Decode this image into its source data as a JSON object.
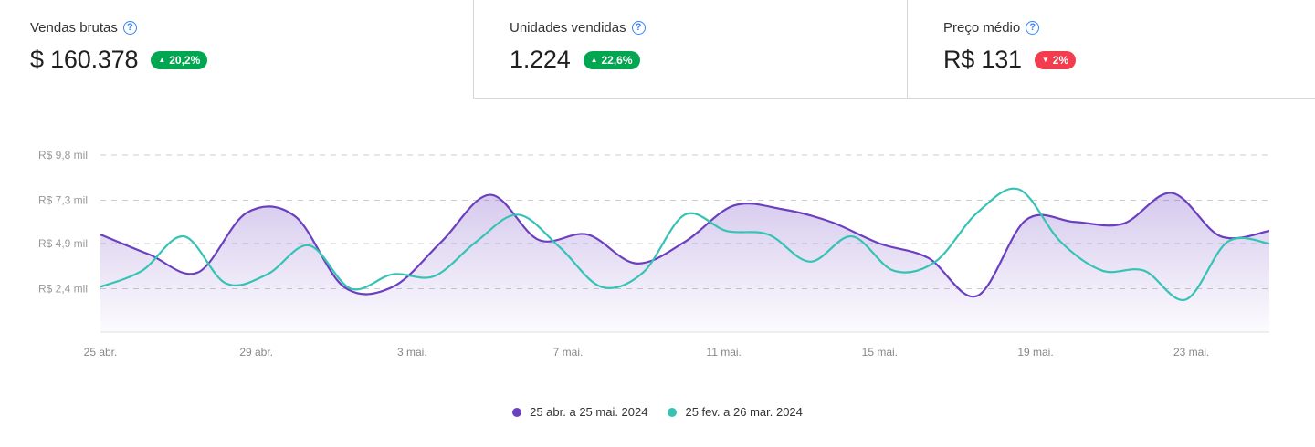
{
  "kpis": [
    {
      "label": "Vendas brutas",
      "value": "$ 160.378",
      "change": "20,2%",
      "direction": "up"
    },
    {
      "label": "Unidades vendidas",
      "value": "1.224",
      "change": "22,6%",
      "direction": "up"
    },
    {
      "label": "Preço médio",
      "value": "R$ 131",
      "change": "2%",
      "direction": "down"
    }
  ],
  "icons": {
    "help": "question-circle-icon",
    "up": "triangle-up-icon",
    "down": "triangle-down-icon"
  },
  "colors": {
    "positive": "#00a650",
    "negative": "#f23d4f",
    "help": "#3483fa"
  },
  "legend": [
    {
      "label": "25 abr. a 25 mai. 2024",
      "color": "#6b3fc0"
    },
    {
      "label": "25 fev. a 26 mar. 2024",
      "color": "#34c3b4"
    }
  ],
  "chart_data": {
    "type": "area",
    "y_ticks": [
      {
        "value": 2.4,
        "label": "R$ 2,4 mil"
      },
      {
        "value": 4.9,
        "label": "R$ 4,9 mil"
      },
      {
        "value": 7.3,
        "label": "R$ 7,3 mil"
      },
      {
        "value": 9.8,
        "label": "R$ 9,8 mil"
      }
    ],
    "ylim": [
      0,
      9.8
    ],
    "x_ticks": [
      {
        "index": 0,
        "label": "25 abr."
      },
      {
        "index": 4,
        "label": "29 abr."
      },
      {
        "index": 8,
        "label": "3 mai."
      },
      {
        "index": 12,
        "label": "7 mai."
      },
      {
        "index": 16,
        "label": "11 mai."
      },
      {
        "index": 20,
        "label": "15 mai."
      },
      {
        "index": 24,
        "label": "19 mai."
      },
      {
        "index": 28,
        "label": "23 mai."
      }
    ],
    "grid": "horizontal-dashed",
    "legend_position": "bottom-center",
    "series": [
      {
        "name": "25 abr. a 25 mai. 2024",
        "color": "#6b3fc0",
        "filled": true,
        "values": [
          5.4,
          4.3,
          3.3,
          6.6,
          6.4,
          2.5,
          2.5,
          5.0,
          7.6,
          5.1,
          5.4,
          3.8,
          5.0,
          7.0,
          6.8,
          6.1,
          4.9,
          4.1,
          2.0,
          6.2,
          6.1,
          6.0,
          7.7,
          5.3,
          5.6
        ]
      },
      {
        "name": "25 fev. a 26 mar. 2024",
        "color": "#34c3b4",
        "filled": false,
        "values": [
          2.5,
          3.4,
          5.3,
          2.7,
          3.2,
          4.8,
          2.4,
          3.2,
          3.1,
          5.0,
          6.5,
          4.7,
          2.5,
          3.3,
          6.5,
          5.6,
          5.4,
          3.9,
          5.3,
          3.4,
          3.9,
          6.6,
          7.9,
          5.0,
          3.4,
          3.4,
          1.8,
          5.0,
          4.9
        ]
      }
    ]
  }
}
